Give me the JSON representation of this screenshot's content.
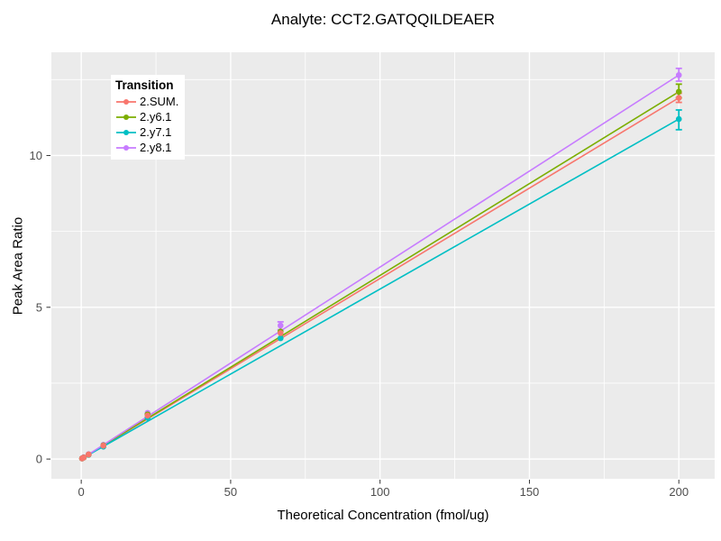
{
  "chart_data": {
    "type": "line",
    "title": "Analyte: CCT2.GATQQILDEAER",
    "xlabel": "Theoretical Concentration (fmol/ug)",
    "ylabel": "Peak Area Ratio",
    "legend_title": "Transition",
    "legend_position": "inside-top-left",
    "panel_bg": "#EBEBEB",
    "grid_color": "#FFFFFF",
    "tick_color": "#333333",
    "tick_label_color": "#4d4d4d",
    "xlim": [
      -10,
      212
    ],
    "ylim": [
      -0.65,
      13.4
    ],
    "x_ticks": [
      0,
      50,
      100,
      150,
      200
    ],
    "y_ticks": [
      0,
      5,
      10
    ],
    "x_minor_ticks": [
      25,
      75,
      125,
      175
    ],
    "y_minor_ticks": [
      2.5,
      7.5,
      12.5
    ],
    "x": [
      0.27,
      0.82,
      2.47,
      7.41,
      22.2,
      66.7,
      200
    ],
    "series": [
      {
        "name": "2.SUM.",
        "color": "#F8766D",
        "points": [
          0.02,
          0.05,
          0.15,
          0.44,
          1.43,
          4.15,
          11.9
        ],
        "line": [
          [
            0,
            0
          ],
          [
            200,
            11.9
          ]
        ],
        "error_bars": [
          {
            "x": 200,
            "lo": 11.75,
            "hi": 12.05
          }
        ]
      },
      {
        "name": "2.y6.1",
        "color": "#7CAE00",
        "points": [
          0.02,
          0.05,
          0.15,
          0.45,
          1.47,
          4.2,
          12.1
        ],
        "line": [
          [
            0,
            0
          ],
          [
            200,
            12.1
          ]
        ],
        "error_bars": [
          {
            "x": 200,
            "lo": 11.9,
            "hi": 12.35
          }
        ]
      },
      {
        "name": "2.y7.1",
        "color": "#00BFC4",
        "points": [
          0.02,
          0.05,
          0.14,
          0.41,
          1.36,
          3.98,
          11.2
        ],
        "line": [
          [
            0,
            0
          ],
          [
            200,
            11.2
          ]
        ],
        "error_bars": [
          {
            "x": 200,
            "lo": 10.85,
            "hi": 11.5
          }
        ]
      },
      {
        "name": "2.y8.1",
        "color": "#C77CFF",
        "points": [
          0.02,
          0.06,
          0.16,
          0.47,
          1.52,
          4.4,
          12.65
        ],
        "line": [
          [
            0,
            0
          ],
          [
            200,
            12.65
          ]
        ],
        "error_bars": [
          {
            "x": 66.7,
            "lo": 4.26,
            "hi": 4.52
          },
          {
            "x": 200,
            "lo": 12.45,
            "hi": 12.87
          }
        ]
      }
    ]
  }
}
